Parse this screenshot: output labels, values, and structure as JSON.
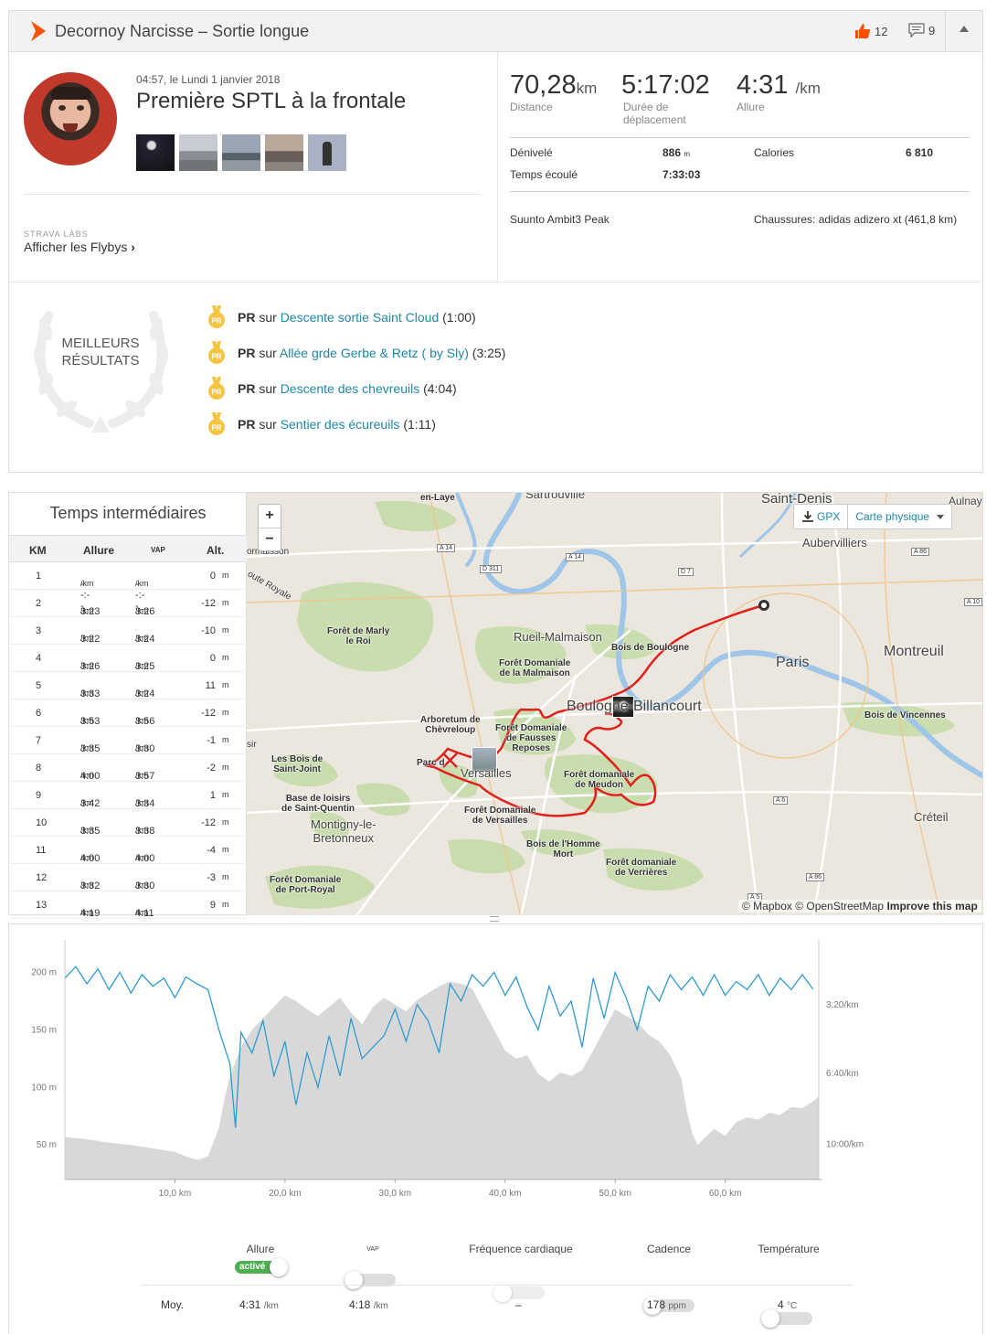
{
  "header": {
    "title": "Decornoy Narcisse – Sortie longue",
    "kudos_count": "12",
    "comments_count": "9"
  },
  "activity": {
    "date": "04:57, le Lundi 1 janvier 2018",
    "name": "Première SPTL à la frontale",
    "labs_label": "STRAVA LABS",
    "flyby_label": "Afficher les Flybys"
  },
  "stats": {
    "distance_value": "70,28",
    "distance_unit": "km",
    "distance_label": "Distance",
    "moving_time_value": "5:17:02",
    "moving_time_label": "Durée de déplacement",
    "pace_value": "4:31",
    "pace_unit": "/km",
    "pace_label": "Allure",
    "elevation_label": "Dénivelé",
    "elevation_value": "886",
    "elevation_unit": "m",
    "elapsed_label": "Temps écoulé",
    "elapsed_value": "7:33:03",
    "calories_label": "Calories",
    "calories_value": "6 810",
    "device": "Suunto Ambit3 Peak",
    "shoes": "Chaussures: adidas adizero xt (461,8 km)"
  },
  "best_results": {
    "title_line1": "MEILLEURS",
    "title_line2": "RÉSULTATS",
    "medal_text": "PR",
    "items": [
      {
        "prefix": "PR",
        "on": "sur",
        "segment": "Descente sortie Saint Cloud",
        "time": "(1:00)"
      },
      {
        "prefix": "PR",
        "on": "sur",
        "segment": "Allée grde Gerbe & Retz ( by Sly)",
        "time": "(3:25)"
      },
      {
        "prefix": "PR",
        "on": "sur",
        "segment": "Descente des chevreuils",
        "time": "(4:04)"
      },
      {
        "prefix": "PR",
        "on": "sur",
        "segment": "Sentier des écureuils",
        "time": "(1:11)"
      }
    ]
  },
  "splits": {
    "title": "Temps intermédiaires",
    "headers": {
      "km": "KM",
      "pace": "Allure",
      "gap": "VAP",
      "alt": "Alt."
    },
    "rows": [
      {
        "km": "1",
        "pace": "--:--",
        "gap": "--:--",
        "alt": "0"
      },
      {
        "km": "2",
        "pace": "3:23",
        "gap": "3:26",
        "alt": "-12"
      },
      {
        "km": "3",
        "pace": "3:22",
        "gap": "3:24",
        "alt": "-10"
      },
      {
        "km": "4",
        "pace": "3:26",
        "gap": "3:25",
        "alt": "0"
      },
      {
        "km": "5",
        "pace": "3:33",
        "gap": "3:24",
        "alt": "11"
      },
      {
        "km": "6",
        "pace": "3:53",
        "gap": "3:56",
        "alt": "-12"
      },
      {
        "km": "7",
        "pace": "3:35",
        "gap": "3:30",
        "alt": "-1"
      },
      {
        "km": "8",
        "pace": "4:00",
        "gap": "3:57",
        "alt": "-2"
      },
      {
        "km": "9",
        "pace": "3:42",
        "gap": "3:34",
        "alt": "1"
      },
      {
        "km": "10",
        "pace": "3:35",
        "gap": "3:38",
        "alt": "-12"
      },
      {
        "km": "11",
        "pace": "4:00",
        "gap": "4:00",
        "alt": "-4"
      },
      {
        "km": "12",
        "pace": "3:32",
        "gap": "3:30",
        "alt": "-3"
      },
      {
        "km": "13",
        "pace": "4:19",
        "gap": "4:11",
        "alt": "9"
      }
    ],
    "pace_unit": "/km",
    "alt_unit": "m"
  },
  "map": {
    "zoom_in": "+",
    "zoom_out": "−",
    "gpx_label": "GPX",
    "map_type": "Carte physique",
    "attribution_a": "© Mapbox © OpenStreetMap",
    "attribution_b": "Improve this map",
    "labels": {
      "sartrouville": "Sartrouville",
      "en_laye": "en-Laye",
      "saint_denis": "Saint-Denis",
      "aulnay": "Aulnay",
      "aubervilliers": "Aubervilliers",
      "moisson": "ormaisson",
      "route_royale": "oute Royale",
      "rueil": "Rueil-Malmaison",
      "marly": "Forêt de Marly\nle Roi",
      "malmaison": "Forêt Domaniale\nde la Malmaison",
      "boulogne_bois": "Bois de Boulogne",
      "paris": "Paris",
      "montreuil": "Montreuil",
      "boulogne": "Boulogne-Billancourt",
      "vincennes": "Bois de Vincennes",
      "arboretum": "Arboretum de\nChèvreloup",
      "fausses": "Forêt Domaniale\nde Fausses\nReposes",
      "parc": "Parc d",
      "versailles": "Versailles",
      "bois_st_joint": "Les Bois de\nSaint-Joint",
      "meudon": "Forêt domaniale\nde Meudon",
      "base_loisirs": "Base de loisirs\nde Saint-Quentin",
      "montigny": "Montigny-le-\nBretonneux",
      "foret_versailles": "Forêt Domaniale\nde Versailles",
      "homme_mort": "Bois de l'Homme\nMort",
      "verrieres": "Forêt domaniale\nde Verrières",
      "port_royal": "Forêt Domaniale\nde Port-Royal",
      "creteil": "Créteil",
      "sir": "sir"
    },
    "roads": {
      "a14a": "A 14",
      "a14b": "A 14",
      "d311": "D 311",
      "d7": "D 7",
      "a86a": "A 86",
      "a10": "A 10",
      "a86b": "A 86",
      "a86c": "A 86",
      "a6": "A 6",
      "a5": "A 5"
    }
  },
  "chart_data": {
    "type": "area",
    "title": "",
    "xlabel": "",
    "x_ticks": [
      "10,0 km",
      "20,0 km",
      "30,0 km",
      "40,0 km",
      "50,0 km",
      "60,0 km"
    ],
    "x_tick_values": [
      10,
      20,
      30,
      40,
      50,
      60
    ],
    "xlim": [
      0,
      68.5
    ],
    "y_left_ticks": [
      "200 m",
      "150 m",
      "100 m",
      "50 m"
    ],
    "y_left_tick_values": [
      200,
      150,
      100,
      50
    ],
    "ylim_left": [
      20,
      225
    ],
    "y_right_ticks": [
      "3:20/km",
      "6:40/km",
      "10:00/km"
    ],
    "series": [
      {
        "type": "area",
        "color": "#d8d8d8",
        "x": [
          0,
          2,
          4,
          6,
          8,
          10,
          11,
          12,
          13,
          14,
          14.5,
          15,
          16,
          17,
          18,
          19,
          20,
          21,
          22,
          23,
          24,
          25,
          26,
          27,
          28,
          29,
          30,
          31,
          32,
          33,
          34,
          35,
          36,
          37,
          38,
          39,
          40,
          41,
          42,
          43,
          44,
          45,
          46,
          47,
          48,
          49,
          50,
          51,
          52,
          53,
          54,
          55,
          56,
          56.5,
          57,
          57.5,
          58,
          59,
          60,
          61,
          62,
          63,
          64,
          65,
          66,
          67,
          68,
          68.5
        ],
        "values": [
          57,
          55,
          52,
          50,
          47,
          44,
          40,
          37,
          40,
          65,
          90,
          110,
          135,
          150,
          160,
          170,
          180,
          175,
          168,
          162,
          170,
          178,
          165,
          155,
          170,
          178,
          172,
          166,
          176,
          182,
          188,
          192,
          190,
          186,
          168,
          150,
          132,
          125,
          128,
          112,
          105,
          113,
          110,
          115,
          132,
          150,
          168,
          162,
          157,
          146,
          140,
          128,
          108,
          80,
          60,
          50,
          55,
          64,
          58,
          70,
          74,
          72,
          78,
          76,
          83,
          82,
          88,
          92
        ]
      },
      {
        "type": "line",
        "color": "#2e9bd0",
        "x": [
          0,
          1,
          2,
          3,
          4,
          5,
          6,
          7,
          8,
          9,
          10,
          11,
          12,
          13,
          14,
          15,
          15.5,
          16,
          17,
          18,
          19,
          20,
          21,
          22,
          23,
          24,
          25,
          26,
          27,
          28,
          29,
          30,
          31,
          32,
          33,
          34,
          35,
          36,
          37,
          38,
          39,
          40,
          41,
          42,
          43,
          44,
          45,
          46,
          47,
          48,
          49,
          50,
          51,
          52,
          53,
          54,
          55,
          56,
          57,
          58,
          59,
          60,
          61,
          62,
          63,
          64,
          65,
          66,
          67,
          68
        ],
        "values": [
          195,
          205,
          190,
          203,
          185,
          200,
          182,
          198,
          188,
          195,
          178,
          196,
          190,
          185,
          150,
          120,
          65,
          148,
          130,
          158,
          110,
          140,
          85,
          130,
          100,
          145,
          110,
          160,
          125,
          135,
          145,
          168,
          140,
          172,
          158,
          130,
          190,
          175,
          198,
          188,
          200,
          180,
          196,
          170,
          150,
          188,
          162,
          175,
          135,
          195,
          160,
          200,
          178,
          150,
          188,
          175,
          198,
          185,
          196,
          180,
          198,
          180,
          192,
          185,
          198,
          180,
          195,
          185,
          198,
          185
        ]
      }
    ]
  },
  "controls": {
    "pace_label": "Allure",
    "pace_state": "activé",
    "gap_label": "VAP",
    "hr_label": "Fréquence cardiaque",
    "cadence_label": "Cadence",
    "temp_label": "Température",
    "avg_label": "Moy.",
    "avg_pace": "4:31",
    "avg_pace_unit": "/km",
    "avg_gap": "4:18",
    "avg_gap_unit": "/km",
    "avg_hr": "–",
    "avg_cadence": "178",
    "avg_cadence_unit": "ppm",
    "avg_temp": "4",
    "avg_temp_unit": "°C"
  },
  "colors": {
    "strava": "#fc5200",
    "link": "#1e88a8",
    "route": "#e0201b",
    "pace_line": "#2e9bd0",
    "elevation": "#d8d8d8"
  }
}
